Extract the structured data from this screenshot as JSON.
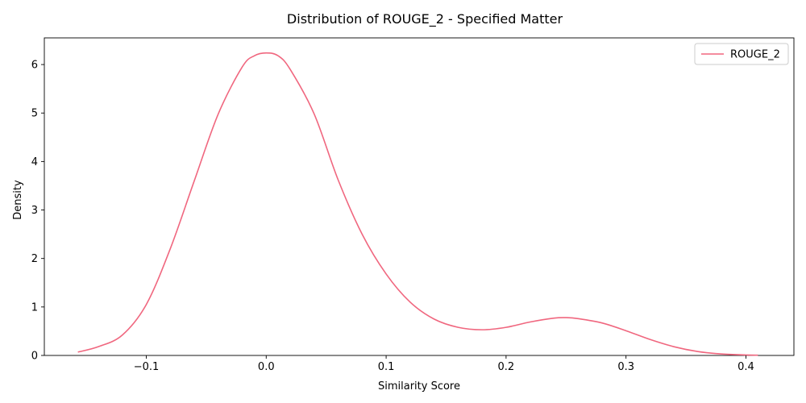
{
  "chart_data": {
    "type": "line",
    "title": "Distribution of ROUGE_2 - Specified Matter",
    "xlabel": "Similarity Score",
    "ylabel": "Density",
    "xlim": [
      -0.185,
      0.44
    ],
    "ylim": [
      0,
      6.55
    ],
    "xticks": [
      -0.1,
      0.0,
      0.1,
      0.2,
      0.3,
      0.4
    ],
    "xtick_labels": [
      "−0.1",
      "0.0",
      "0.1",
      "0.2",
      "0.3",
      "0.4"
    ],
    "yticks": [
      0,
      1,
      2,
      3,
      4,
      5,
      6
    ],
    "ytick_labels": [
      "0",
      "1",
      "2",
      "3",
      "4",
      "5",
      "6"
    ],
    "grid": false,
    "legend_position": "top-right",
    "series": [
      {
        "name": "ROUGE_2",
        "color": "#f0677f",
        "x": [
          -0.157,
          -0.14,
          -0.12,
          -0.1,
          -0.08,
          -0.06,
          -0.04,
          -0.02,
          -0.01,
          0.0,
          0.01,
          0.02,
          0.04,
          0.06,
          0.08,
          0.1,
          0.12,
          0.14,
          0.16,
          0.18,
          0.2,
          0.22,
          0.24,
          0.25,
          0.26,
          0.28,
          0.3,
          0.32,
          0.34,
          0.36,
          0.38,
          0.4,
          0.41
        ],
        "values": [
          0.07,
          0.18,
          0.42,
          1.05,
          2.2,
          3.6,
          4.98,
          5.95,
          6.18,
          6.24,
          6.18,
          5.9,
          4.98,
          3.62,
          2.5,
          1.68,
          1.1,
          0.75,
          0.58,
          0.53,
          0.58,
          0.69,
          0.77,
          0.78,
          0.76,
          0.67,
          0.51,
          0.33,
          0.18,
          0.08,
          0.03,
          0.01,
          0.005
        ]
      }
    ]
  }
}
